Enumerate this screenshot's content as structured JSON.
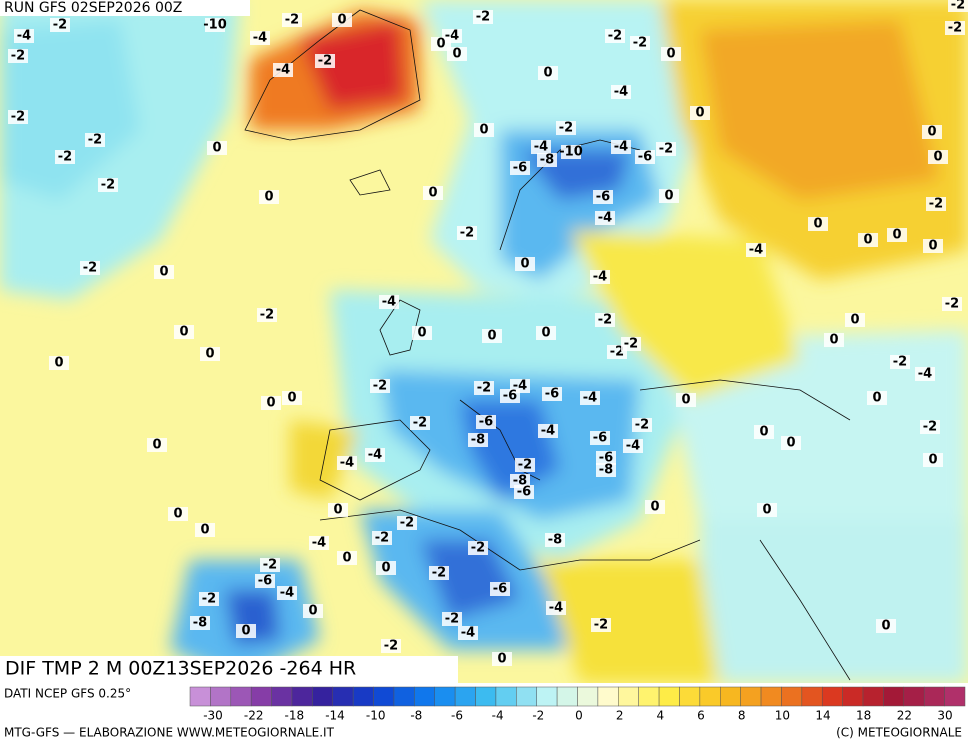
{
  "header": {
    "run": "RUN GFS 02SEP2026 00Z"
  },
  "map": {
    "field_label": "DIF TMP 2 M 00Z13SEP2026 -264 HR",
    "contour_labels": [
      -4,
      -2,
      -2,
      -2,
      -2,
      -2,
      -2,
      -2,
      -10,
      -4,
      -2,
      0,
      -4,
      -2,
      -4,
      0,
      0,
      -2,
      0,
      0,
      0,
      0,
      0,
      0,
      -2,
      -2,
      -4,
      -8,
      -10,
      -6,
      -4,
      -6,
      -2,
      -6,
      -4,
      0,
      -4,
      -2,
      -2,
      0,
      0,
      -4,
      -2,
      0,
      0,
      0,
      0,
      0,
      0,
      -2,
      -2,
      -2,
      0,
      -4,
      -2,
      -2,
      -4,
      -6,
      -6,
      -4,
      -2,
      -6,
      -8,
      -4,
      -6,
      -6,
      -8,
      -4,
      -2,
      0,
      0,
      0,
      -2,
      -8,
      -6,
      -4,
      -4,
      0,
      0,
      0,
      0,
      0,
      0,
      -2,
      -2,
      -4,
      0,
      0,
      -2,
      -8,
      -2,
      -6,
      -4,
      -2,
      -4,
      -2,
      0,
      0,
      -2,
      -6,
      -4,
      -2,
      0,
      0,
      -8,
      -2,
      0,
      0,
      -2,
      -2,
      0,
      0,
      -2,
      0,
      0,
      0,
      -4,
      0,
      -2,
      0,
      0,
      -2,
      -4,
      0,
      -2,
      0
    ]
  },
  "legend": {
    "source": "DATI NCEP GFS 0.25°",
    "ticks": [
      -30,
      -22,
      -18,
      -14,
      -10,
      -8,
      -6,
      -4,
      -2,
      0,
      2,
      4,
      6,
      8,
      10,
      14,
      18,
      22,
      30
    ]
  },
  "footer": {
    "credit": "MTG-GFS — ELABORAZIONE WWW.METEOGIORNALE.IT",
    "copyright": "(C) METEOGIORNALE"
  }
}
